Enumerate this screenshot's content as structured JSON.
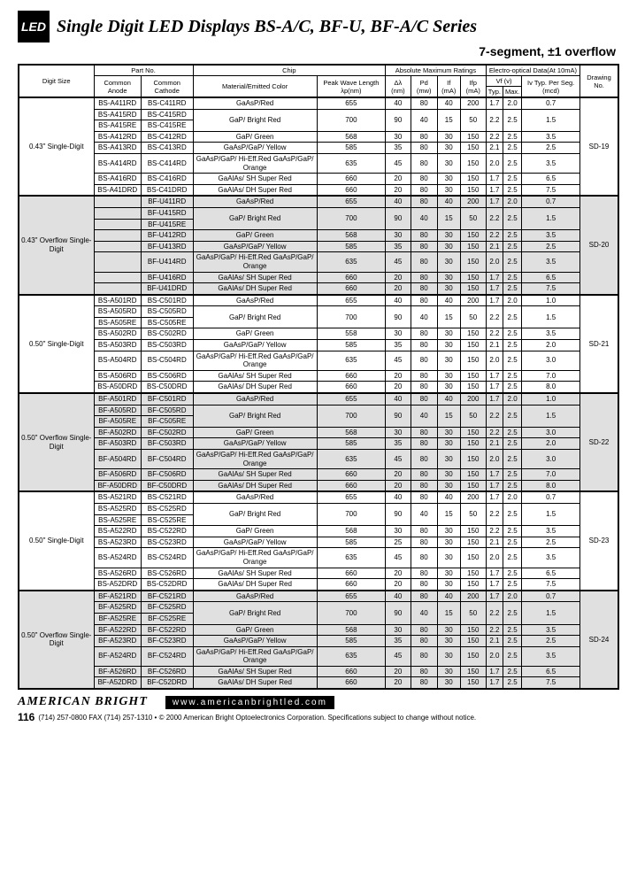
{
  "header": {
    "logo": "LED",
    "title": "Single Digit LED Displays  BS-A/C, BF-U, BF-A/C Series",
    "subtitle": "7-segment, ±1 overflow"
  },
  "cols": {
    "digit": "Digit Size",
    "partno": "Part No.",
    "chip": "Chip",
    "abs": "Absolute Maximum Ratings",
    "eo": "Electro-optical Data(At 10mA)",
    "draw": "Drawing No.",
    "anode": "Common Anode",
    "cathode": "Common Cathode",
    "mat": "Material/Emitted Color",
    "wave": "Peak Wave Length λp(nm)",
    "dl": "Δλ (nm)",
    "pd": "Pd (mw)",
    "if": "If (mA)",
    "ifp": "Ifp (mA)",
    "vf": "Vf (v)",
    "typ": "Typ.",
    "max": "Max.",
    "iv": "Iv Typ. Per Seg. (mcd)"
  },
  "groups": [
    {
      "size": "0.43\" Single-Digit",
      "draw": "SD-19",
      "gray": false,
      "rows": [
        [
          "BS-A411RD",
          "BS-C411RD",
          "GaAsP/Red",
          "655",
          "40",
          "80",
          "40",
          "200",
          "1.7",
          "2.0",
          "0.7"
        ],
        [
          "BS-A415RD",
          "BS-C415RD",
          "GaP/ Bright Red",
          "700",
          "90",
          "40",
          "15",
          "50",
          "2.2",
          "2.5",
          "1.5"
        ],
        [
          "BS-A415RE",
          "BS-C415RE",
          "",
          "",
          "",
          "",
          "",
          "",
          "",
          "",
          ""
        ],
        [
          "BS-A412RD",
          "BS-C412RD",
          "GaP/ Green",
          "568",
          "30",
          "80",
          "30",
          "150",
          "2.2",
          "2.5",
          "3.5"
        ],
        [
          "BS-A413RD",
          "BS-C413RD",
          "GaAsP/GaP/ Yellow",
          "585",
          "35",
          "80",
          "30",
          "150",
          "2.1",
          "2.5",
          "2.5"
        ],
        [
          "BS-A414RD",
          "BS-C414RD",
          "GaAsP/GaP/ Hi-Eff.Red GaAsP/GaP/ Orange",
          "635",
          "45",
          "80",
          "30",
          "150",
          "2.0",
          "2.5",
          "3.5"
        ],
        [
          "BS-A416RD",
          "BS-C416RD",
          "GaAlAs/ SH Super Red",
          "660",
          "20",
          "80",
          "30",
          "150",
          "1.7",
          "2.5",
          "6.5"
        ],
        [
          "BS-A41DRD",
          "BS-C41DRD",
          "GaAlAs/ DH Super Red",
          "660",
          "20",
          "80",
          "30",
          "150",
          "1.7",
          "2.5",
          "7.5"
        ]
      ]
    },
    {
      "size": "0.43\" Overflow Single-Digit",
      "draw": "SD-20",
      "gray": true,
      "rows": [
        [
          "",
          "BF-U411RD",
          "GaAsP/Red",
          "655",
          "40",
          "80",
          "40",
          "200",
          "1.7",
          "2.0",
          "0.7"
        ],
        [
          "",
          "BF-U415RD",
          "GaP/ Bright Red",
          "700",
          "90",
          "40",
          "15",
          "50",
          "2.2",
          "2.5",
          "1.5"
        ],
        [
          "",
          "BF-U415RE",
          "",
          "",
          "",
          "",
          "",
          "",
          "",
          "",
          ""
        ],
        [
          "",
          "BF-U412RD",
          "GaP/ Green",
          "568",
          "30",
          "80",
          "30",
          "150",
          "2.2",
          "2.5",
          "3.5"
        ],
        [
          "",
          "BF-U413RD",
          "GaAsP/GaP/ Yellow",
          "585",
          "35",
          "80",
          "30",
          "150",
          "2.1",
          "2.5",
          "2.5"
        ],
        [
          "",
          "BF-U414RD",
          "GaAsP/GaP/ Hi-Eff.Red GaAsP/GaP/ Orange",
          "635",
          "45",
          "80",
          "30",
          "150",
          "2.0",
          "2.5",
          "3.5"
        ],
        [
          "",
          "BF-U416RD",
          "GaAlAs/ SH Super Red",
          "660",
          "20",
          "80",
          "30",
          "150",
          "1.7",
          "2.5",
          "6.5"
        ],
        [
          "",
          "BF-U41DRD",
          "GaAlAs/ DH Super Red",
          "660",
          "20",
          "80",
          "30",
          "150",
          "1.7",
          "2.5",
          "7.5"
        ]
      ]
    },
    {
      "size": "0.50\" Single-Digit",
      "draw": "SD-21",
      "gray": false,
      "rows": [
        [
          "BS-A501RD",
          "BS-C501RD",
          "GaAsP/Red",
          "655",
          "40",
          "80",
          "40",
          "200",
          "1.7",
          "2.0",
          "1.0"
        ],
        [
          "BS-A505RD",
          "BS-C505RD",
          "GaP/ Bright Red",
          "700",
          "90",
          "40",
          "15",
          "50",
          "2.2",
          "2.5",
          "1.5"
        ],
        [
          "BS-A505RE",
          "BS-C505RE",
          "",
          "",
          "",
          "",
          "",
          "",
          "",
          "",
          ""
        ],
        [
          "BS-A502RD",
          "BS-C502RD",
          "GaP/ Green",
          "558",
          "30",
          "80",
          "30",
          "150",
          "2.2",
          "2.5",
          "3.5"
        ],
        [
          "BS-A503RD",
          "BS-C503RD",
          "GaAsP/GaP/ Yellow",
          "585",
          "35",
          "80",
          "30",
          "150",
          "2.1",
          "2.5",
          "2.0"
        ],
        [
          "BS-A504RD",
          "BS-C504RD",
          "GaAsP/GaP/ Hi-Eff.Red GaAsP/GaP/ Orange",
          "635",
          "45",
          "80",
          "30",
          "150",
          "2.0",
          "2.5",
          "3.0"
        ],
        [
          "BS-A506RD",
          "BS-C506RD",
          "GaAlAs/ SH Super Red",
          "660",
          "20",
          "80",
          "30",
          "150",
          "1.7",
          "2.5",
          "7.0"
        ],
        [
          "BS-A50DRD",
          "BS-C50DRD",
          "GaAlAs/ DH Super Red",
          "660",
          "20",
          "80",
          "30",
          "150",
          "1.7",
          "2.5",
          "8.0"
        ]
      ]
    },
    {
      "size": "0.50\" Overflow Single-Digit",
      "draw": "SD-22",
      "gray": true,
      "rows": [
        [
          "BF-A501RD",
          "BF-C501RD",
          "GaAsP/Red",
          "655",
          "40",
          "80",
          "40",
          "200",
          "1.7",
          "2.0",
          "1.0"
        ],
        [
          "BF-A505RD",
          "BF-C505RD",
          "GaP/ Bright Red",
          "700",
          "90",
          "40",
          "15",
          "50",
          "2.2",
          "2.5",
          "1.5"
        ],
        [
          "BF-A505RE",
          "BF-C505RE",
          "",
          "",
          "",
          "",
          "",
          "",
          "",
          "",
          ""
        ],
        [
          "BF-A502RD",
          "BF-C502RD",
          "GaP/ Green",
          "568",
          "30",
          "80",
          "30",
          "150",
          "2.2",
          "2.5",
          "3.0"
        ],
        [
          "BF-A503RD",
          "BF-C503RD",
          "GaAsP/GaP/ Yellow",
          "585",
          "35",
          "80",
          "30",
          "150",
          "2.1",
          "2.5",
          "2.0"
        ],
        [
          "BF-A504RD",
          "BF-C504RD",
          "GaAsP/GaP/ Hi-Eff.Red GaAsP/GaP/ Orange",
          "635",
          "45",
          "80",
          "30",
          "150",
          "2.0",
          "2.5",
          "3.0"
        ],
        [
          "BF-A506RD",
          "BF-C506RD",
          "GaAlAs/ SH Super Red",
          "660",
          "20",
          "80",
          "30",
          "150",
          "1.7",
          "2.5",
          "7.0"
        ],
        [
          "BF-A50DRD",
          "BF-C50DRD",
          "GaAlAs/ DH Super Red",
          "660",
          "20",
          "80",
          "30",
          "150",
          "1.7",
          "2.5",
          "8.0"
        ]
      ]
    },
    {
      "size": "0.50\" Single-Digit",
      "draw": "SD-23",
      "gray": false,
      "rows": [
        [
          "BS-A521RD",
          "BS-C521RD",
          "GaAsP/Red",
          "655",
          "40",
          "80",
          "40",
          "200",
          "1.7",
          "2.0",
          "0.7"
        ],
        [
          "BS-A525RD",
          "BS-C525RD",
          "GaP/ Bright Red",
          "700",
          "90",
          "40",
          "15",
          "50",
          "2.2",
          "2.5",
          "1.5"
        ],
        [
          "BS-A525RE",
          "BS-C525RE",
          "",
          "",
          "",
          "",
          "",
          "",
          "",
          "",
          ""
        ],
        [
          "BS-A522RD",
          "BS-C522RD",
          "GaP/ Green",
          "568",
          "30",
          "80",
          "30",
          "150",
          "2.2",
          "2.5",
          "3.5"
        ],
        [
          "BS-A523RD",
          "BS-C523RD",
          "GaAsP/GaP/ Yellow",
          "585",
          "25",
          "80",
          "30",
          "150",
          "2.1",
          "2.5",
          "2.5"
        ],
        [
          "BS-A524RD",
          "BS-C524RD",
          "GaAsP/GaP/ Hi-Eff.Red GaAsP/GaP/ Orange",
          "635",
          "45",
          "80",
          "30",
          "150",
          "2.0",
          "2.5",
          "3.5"
        ],
        [
          "BS-A526RD",
          "BS-C526RD",
          "GaAlAs/ SH Super Red",
          "660",
          "20",
          "80",
          "30",
          "150",
          "1.7",
          "2.5",
          "6.5"
        ],
        [
          "BS-A52DRD",
          "BS-C52DRD",
          "GaAlAs/ DH Super Red",
          "660",
          "20",
          "80",
          "30",
          "150",
          "1.7",
          "2.5",
          "7.5"
        ]
      ]
    },
    {
      "size": "0.50\" Overflow Single-Digit",
      "draw": "SD-24",
      "gray": true,
      "rows": [
        [
          "BF-A521RD",
          "BF-C521RD",
          "GaAsP/Red",
          "655",
          "40",
          "80",
          "40",
          "200",
          "1.7",
          "2.0",
          "0.7"
        ],
        [
          "BF-A525RD",
          "BF-C525RD",
          "GaP/ Bright Red",
          "700",
          "90",
          "40",
          "15",
          "50",
          "2.2",
          "2.5",
          "1.5"
        ],
        [
          "BF-A525RE",
          "BF-C525RE",
          "",
          "",
          "",
          "",
          "",
          "",
          "",
          "",
          ""
        ],
        [
          "BF-A522RD",
          "BF-C522RD",
          "GaP/ Green",
          "568",
          "30",
          "80",
          "30",
          "150",
          "2.2",
          "2.5",
          "3.5"
        ],
        [
          "BF-A523RD",
          "BF-C523RD",
          "GaAsP/GaP/ Yellow",
          "585",
          "35",
          "80",
          "30",
          "150",
          "2.1",
          "2.5",
          "2.5"
        ],
        [
          "BF-A524RD",
          "BF-C524RD",
          "GaAsP/GaP/ Hi-Eff.Red GaAsP/GaP/ Orange",
          "635",
          "45",
          "80",
          "30",
          "150",
          "2.0",
          "2.5",
          "3.5"
        ],
        [
          "BF-A526RD",
          "BF-C526RD",
          "GaAlAs/ SH Super Red",
          "660",
          "20",
          "80",
          "30",
          "150",
          "1.7",
          "2.5",
          "6.5"
        ],
        [
          "BF-A52DRD",
          "BF-C52DRD",
          "GaAlAs/ DH Super Red",
          "660",
          "20",
          "80",
          "30",
          "150",
          "1.7",
          "2.5",
          "7.5"
        ]
      ]
    }
  ],
  "footer": {
    "brand": "AMERICAN BRIGHT",
    "url": "www.americanbrightled.com",
    "page": "116",
    "copyright": "(714) 257-0800   FAX (714) 257-1310 • © 2000 American Bright Optoelectronics Corporation. Specifications subject to change without notice."
  }
}
